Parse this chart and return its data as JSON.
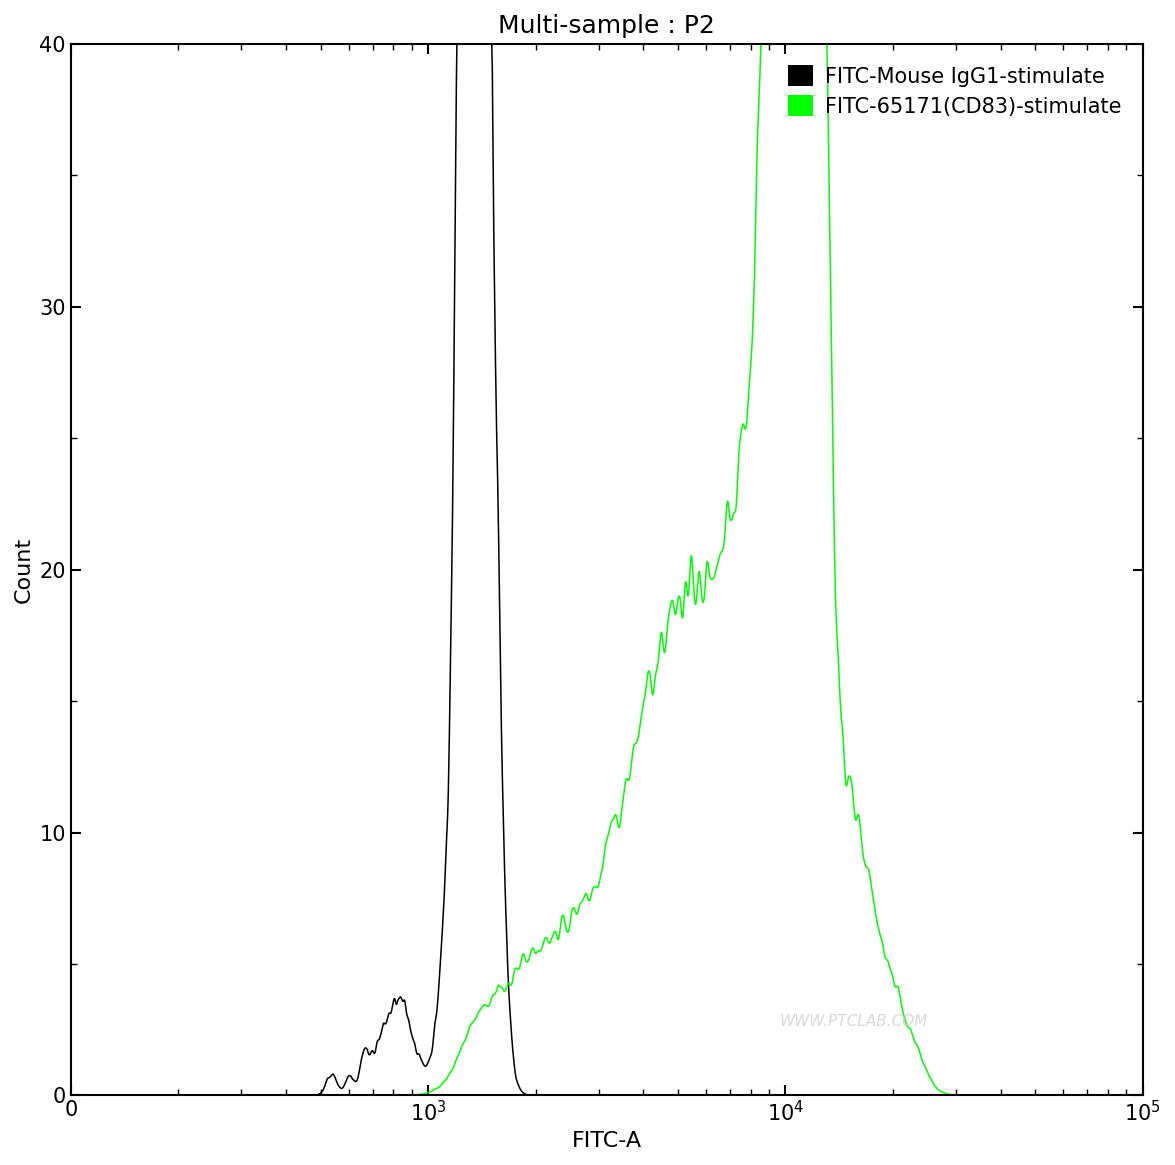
{
  "title": "Multi-sample : P2",
  "xlabel": "FITC-A",
  "ylabel": "Count",
  "ylim": [
    0,
    40
  ],
  "yticks": [
    0,
    10,
    20,
    30,
    40
  ],
  "background_color": "#ffffff",
  "line_color_black": "#000000",
  "line_color_green": "#00ff00",
  "legend_labels": [
    "FITC-Mouse IgG1-stimulate",
    "FITC-65171(CD83)-stimulate"
  ],
  "legend_colors": [
    "#000000",
    "#00ff00"
  ],
  "watermark": "WWW.PTCLAB.COM",
  "title_fontsize": 18,
  "axis_fontsize": 16,
  "tick_fontsize": 15,
  "legend_fontsize": 15
}
